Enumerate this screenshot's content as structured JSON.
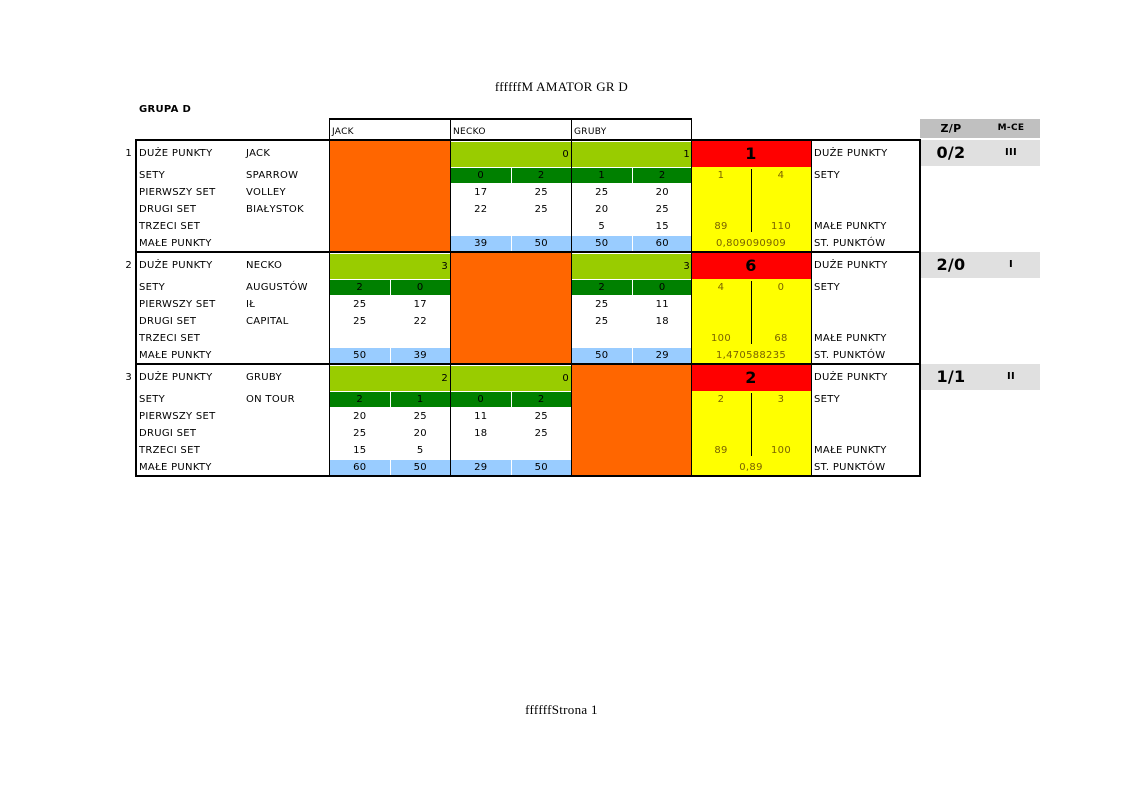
{
  "title": "ffffffM AMATOR GR D",
  "group": "GRUPA D",
  "footer": "ffffffStrona 1",
  "columns": [
    "JACK",
    "NECKO",
    "GRUBY"
  ],
  "summary_headers": [
    "Z/P",
    "M-CE"
  ],
  "row_labels": [
    "DUŻE PUNKTY",
    "SETY",
    "PIERWSZY SET",
    "DRUGI SET",
    "TRZECI SET",
    "MAŁE PUNKTY"
  ],
  "right_labels": {
    "big": "DUŻE PUNKTY",
    "sets": "SETY",
    "small": "MAŁE PUNKTY",
    "ratio": "ST. PUNKTÓW"
  },
  "blocks": [
    {
      "number": "1",
      "team": [
        "JACK",
        "SPARROW",
        "VOLLEY",
        "BIAŁYSTOK"
      ],
      "matches": [
        null,
        {
          "points": "0",
          "sets": [
            "0",
            "2"
          ],
          "set1": [
            "17",
            "25"
          ],
          "set2": [
            "22",
            "25"
          ],
          "set3": null,
          "small": [
            "39",
            "50"
          ]
        },
        {
          "points": "1",
          "sets": [
            "1",
            "2"
          ],
          "set1": [
            "25",
            "20"
          ],
          "set2": [
            "20",
            "25"
          ],
          "set3": [
            "5",
            "15"
          ],
          "small": [
            "50",
            "60"
          ]
        }
      ],
      "result": {
        "points": "1",
        "sets": [
          "1",
          "4"
        ],
        "small": [
          "89",
          "110"
        ],
        "ratio": "0,809090909"
      },
      "zp": "0/2",
      "place": "III"
    },
    {
      "number": "2",
      "team": [
        "NECKO",
        "AUGUSTÓW",
        "IŁ",
        "CAPITAL"
      ],
      "matches": [
        {
          "points": "3",
          "sets": [
            "2",
            "0"
          ],
          "set1": [
            "25",
            "17"
          ],
          "set2": [
            "25",
            "22"
          ],
          "set3": null,
          "small": [
            "50",
            "39"
          ]
        },
        null,
        {
          "points": "3",
          "sets": [
            "2",
            "0"
          ],
          "set1": [
            "25",
            "11"
          ],
          "set2": [
            "25",
            "18"
          ],
          "set3": null,
          "small": [
            "50",
            "29"
          ]
        }
      ],
      "result": {
        "points": "6",
        "sets": [
          "4",
          "0"
        ],
        "small": [
          "100",
          "68"
        ],
        "ratio": "1,470588235"
      },
      "zp": "2/0",
      "place": "I"
    },
    {
      "number": "3",
      "team": [
        "GRUBY",
        "ON TOUR"
      ],
      "matches": [
        {
          "points": "2",
          "sets": [
            "2",
            "1"
          ],
          "set1": [
            "20",
            "25"
          ],
          "set2": [
            "25",
            "20"
          ],
          "set3": [
            "15",
            "5"
          ],
          "small": [
            "60",
            "50"
          ]
        },
        {
          "points": "0",
          "sets": [
            "0",
            "2"
          ],
          "set1": [
            "11",
            "25"
          ],
          "set2": [
            "18",
            "25"
          ],
          "set3": null,
          "small": [
            "29",
            "50"
          ]
        },
        null
      ],
      "result": {
        "points": "2",
        "sets": [
          "2",
          "3"
        ],
        "small": [
          "89",
          "100"
        ],
        "ratio": "0,89"
      },
      "zp": "1/1",
      "place": "II"
    }
  ]
}
